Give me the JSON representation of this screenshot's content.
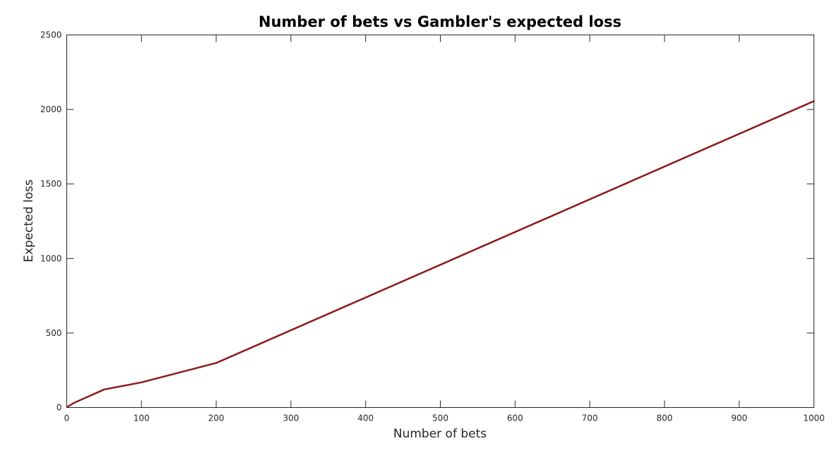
{
  "chart_data": {
    "type": "line",
    "title": "Number of bets vs Gambler's expected loss",
    "xlabel": "Number of bets",
    "ylabel": "Expected loss",
    "xlim": [
      0,
      1000
    ],
    "ylim": [
      0,
      2500
    ],
    "xticks": [
      0,
      100,
      200,
      300,
      400,
      500,
      600,
      700,
      800,
      900,
      1000
    ],
    "yticks": [
      0,
      500,
      1000,
      1500,
      2000,
      2500
    ],
    "grid": false,
    "legend": "none",
    "series": [
      {
        "color": "#8b1a1a",
        "x": [
          1,
          10,
          50,
          100,
          200,
          1000
        ],
        "y": [
          5,
          32,
          121,
          169,
          299,
          2056
        ]
      }
    ]
  }
}
